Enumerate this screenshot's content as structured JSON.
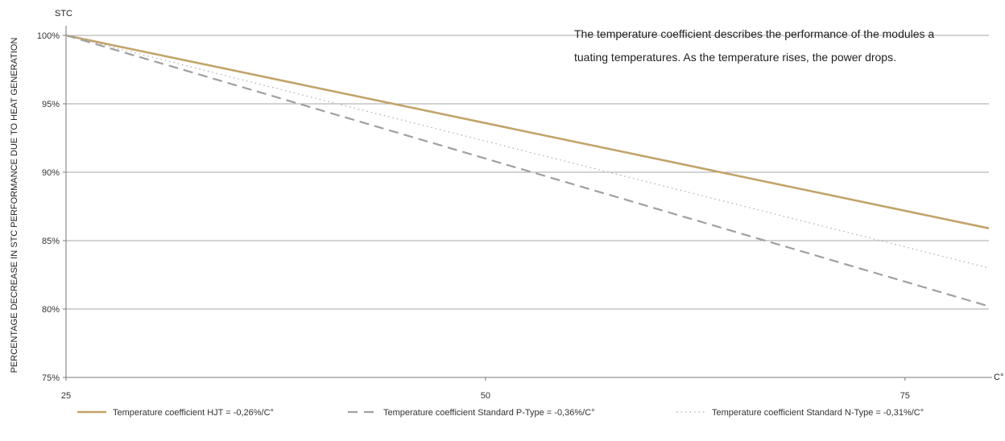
{
  "chart_data": {
    "type": "line",
    "title": "",
    "xlabel": "",
    "ylabel": "PERCENTAGE DECREASE IN STC PERFORMANCE DUE TO HEAT GENERATION",
    "y_unit_label": "STC",
    "x_unit_label": "C°",
    "xlim": [
      25,
      80
    ],
    "ylim": [
      75,
      100
    ],
    "x_ticks": [
      25,
      50,
      75
    ],
    "x_tick_labels": [
      "25",
      "50",
      "75"
    ],
    "y_ticks": [
      75,
      80,
      85,
      90,
      95,
      100
    ],
    "y_tick_labels": [
      "75%",
      "80%",
      "85%",
      "90%",
      "95%",
      "100%"
    ],
    "grid": "horizontal",
    "legend_position": "bottom",
    "annotation_lines": [
      "The temperature coefficient describes the performance of the modules a",
      "tuating temperatures. As the temperature rises, the power drops."
    ],
    "series": [
      {
        "name": "Temperature coefficient HJT = -0,26%/C°",
        "color": "#c2a46a",
        "style": "solid",
        "x": [
          25,
          80
        ],
        "y": [
          100,
          85.9
        ]
      },
      {
        "name": "Temperature coefficient Standard P-Type = -0,36%/C°",
        "color": "#a0a0a0",
        "style": "dashed",
        "x": [
          25,
          80
        ],
        "y": [
          100,
          80.2
        ]
      },
      {
        "name": "Temperature coefficient Standard N-Type = -0,31%/C°",
        "color": "#b0b0b0",
        "style": "dotted",
        "x": [
          25,
          80
        ],
        "y": [
          100,
          83.0
        ]
      }
    ]
  }
}
